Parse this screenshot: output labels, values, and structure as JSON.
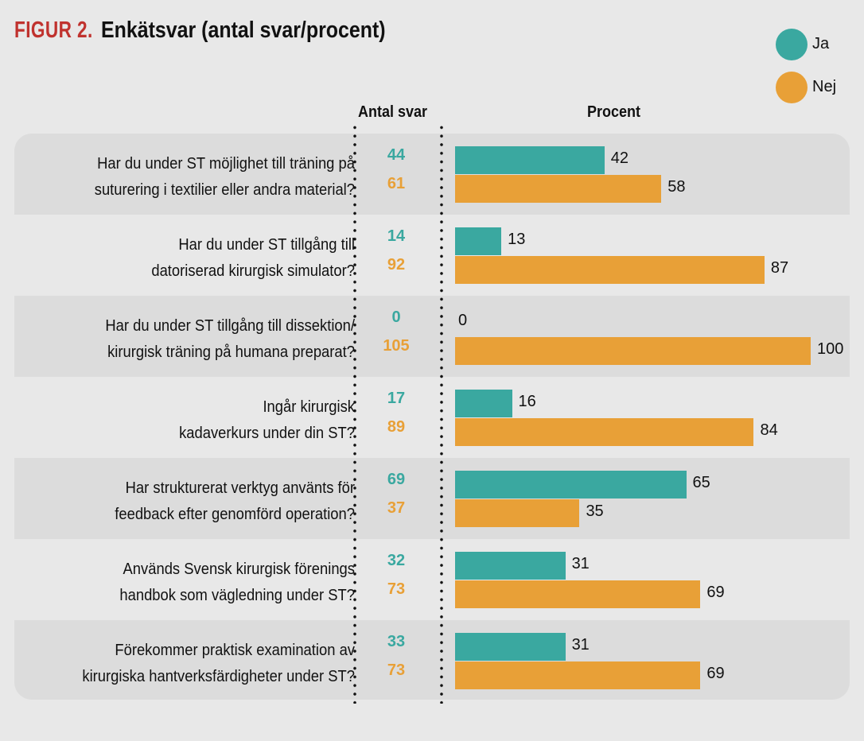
{
  "title": {
    "prefix": "FIGUR 2.",
    "text": "Enkätsvar (antal svar/procent)"
  },
  "colors": {
    "ja": "#3aa8a0",
    "nej": "#e8a037",
    "title_accent": "#c0322e"
  },
  "chart_data": {
    "type": "bar",
    "orientation": "horizontal",
    "title": "FIGUR 2. Enkätsvar (antal svar/procent)",
    "column_headers": {
      "counts": "Antal svar",
      "percent": "Procent"
    },
    "legend": {
      "position": "top-right",
      "entries": [
        "Ja",
        "Nej"
      ]
    },
    "xlim": [
      0,
      100
    ],
    "categories": [
      "Har du under ST möjlighet till träning på suturering i textilier eller andra material?",
      "Har du under ST tillgång till datoriserad kirurgisk simulator?",
      "Har du under ST tillgång till dissektion/ kirurgisk träning på humana preparat?",
      "Ingår kirurgisk kadaverkurs under din ST?",
      "Har strukturerat verktyg använts för feedback efter genomförd operation?",
      "Används Svensk kirurgisk förenings handbok som vägledning under ST?",
      "Förekommer praktisk examination av kirurgiska hantverksfärdigheter under ST?"
    ],
    "series": [
      {
        "name": "Ja",
        "counts": [
          44,
          14,
          0,
          17,
          69,
          32,
          33
        ],
        "values": [
          42,
          13,
          0,
          16,
          65,
          31,
          31
        ]
      },
      {
        "name": "Nej",
        "counts": [
          61,
          92,
          105,
          89,
          37,
          73,
          73
        ],
        "values": [
          58,
          87,
          100,
          84,
          35,
          69,
          69
        ]
      }
    ]
  },
  "rows": [
    {
      "line1": "Har du under ST möjlighet till träning på",
      "line2": "suturering i textilier eller andra material?",
      "ja_count": "44",
      "nej_count": "61",
      "ja_pct": "42",
      "nej_pct": "58"
    },
    {
      "line1": "Har du under ST tillgång till",
      "line2": "datoriserad kirurgisk simulator?",
      "ja_count": "14",
      "nej_count": "92",
      "ja_pct": "13",
      "nej_pct": "87"
    },
    {
      "line1": "Har du under ST tillgång till dissektion/",
      "line2": "kirurgisk träning på humana preparat?",
      "ja_count": "0",
      "nej_count": "105",
      "ja_pct": "0",
      "nej_pct": "100"
    },
    {
      "line1": "Ingår kirurgisk",
      "line2": "kadaverkurs under din ST?",
      "ja_count": "17",
      "nej_count": "89",
      "ja_pct": "16",
      "nej_pct": "84"
    },
    {
      "line1": "Har strukturerat verktyg använts för",
      "line2": "feedback efter genomförd operation?",
      "ja_count": "69",
      "nej_count": "37",
      "ja_pct": "65",
      "nej_pct": "35"
    },
    {
      "line1": "Används Svensk kirurgisk förenings",
      "line2": "handbok som vägledning under ST?",
      "ja_count": "32",
      "nej_count": "73",
      "ja_pct": "31",
      "nej_pct": "69"
    },
    {
      "line1": "Förekommer praktisk examination av",
      "line2": "kirurgiska hantverksfärdigheter under ST?",
      "ja_count": "33",
      "nej_count": "73",
      "ja_pct": "31",
      "nej_pct": "69"
    }
  ]
}
